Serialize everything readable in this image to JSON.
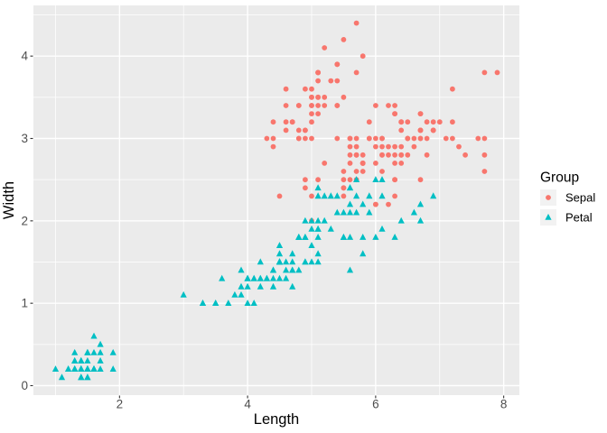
{
  "chart_data": {
    "type": "scatter",
    "title": "",
    "xlabel": "Length",
    "ylabel": "Width",
    "x_ticks": [
      2,
      4,
      6,
      8
    ],
    "y_ticks": [
      0,
      1,
      2,
      3,
      4
    ],
    "x_minor": [
      1,
      3,
      5,
      7
    ],
    "y_minor": [
      0.5,
      1.5,
      2.5,
      3.5,
      4.5
    ],
    "xlim": [
      0.655,
      8.245
    ],
    "ylim": [
      -0.115,
      4.615
    ],
    "grid": "on",
    "panel_bg": "#EBEBEB",
    "grid_color": "#FFFFFF",
    "tick_mark_color": "#333333",
    "axis_text_color": "#4D4D4D",
    "legend": {
      "title": "Group",
      "position": "right",
      "key_fill": "#F2F2F2",
      "entries": [
        {
          "label": "Sepal",
          "shape": "circle",
          "color": "#F8766D"
        },
        {
          "label": "Petal",
          "shape": "triangle",
          "color": "#00BFC4"
        }
      ]
    },
    "series": [
      {
        "name": "Sepal",
        "shape": "circle",
        "color": "#F8766D",
        "points": [
          [
            5.1,
            3.5
          ],
          [
            4.9,
            3.0
          ],
          [
            4.7,
            3.2
          ],
          [
            4.6,
            3.1
          ],
          [
            5.0,
            3.6
          ],
          [
            5.4,
            3.9
          ],
          [
            4.6,
            3.4
          ],
          [
            5.0,
            3.4
          ],
          [
            4.4,
            2.9
          ],
          [
            4.9,
            3.1
          ],
          [
            5.4,
            3.7
          ],
          [
            4.8,
            3.4
          ],
          [
            4.8,
            3.0
          ],
          [
            4.3,
            3.0
          ],
          [
            5.8,
            4.0
          ],
          [
            5.7,
            4.4
          ],
          [
            5.4,
            3.9
          ],
          [
            5.1,
            3.5
          ],
          [
            5.7,
            3.8
          ],
          [
            5.1,
            3.8
          ],
          [
            5.4,
            3.4
          ],
          [
            5.1,
            3.7
          ],
          [
            4.6,
            3.6
          ],
          [
            5.1,
            3.3
          ],
          [
            4.8,
            3.4
          ],
          [
            5.0,
            3.0
          ],
          [
            5.0,
            3.4
          ],
          [
            5.2,
            3.5
          ],
          [
            5.2,
            3.4
          ],
          [
            4.7,
            3.2
          ],
          [
            4.8,
            3.1
          ],
          [
            5.4,
            3.4
          ],
          [
            5.2,
            4.1
          ],
          [
            5.5,
            4.2
          ],
          [
            4.9,
            3.1
          ],
          [
            5.0,
            3.2
          ],
          [
            5.5,
            3.5
          ],
          [
            4.9,
            3.6
          ],
          [
            4.4,
            3.0
          ],
          [
            5.1,
            3.4
          ],
          [
            5.0,
            3.5
          ],
          [
            4.5,
            2.3
          ],
          [
            4.4,
            3.2
          ],
          [
            5.0,
            3.5
          ],
          [
            5.1,
            3.8
          ],
          [
            4.8,
            3.0
          ],
          [
            5.1,
            3.8
          ],
          [
            4.6,
            3.2
          ],
          [
            5.3,
            3.7
          ],
          [
            5.0,
            3.3
          ],
          [
            7.0,
            3.2
          ],
          [
            6.4,
            3.2
          ],
          [
            6.9,
            3.1
          ],
          [
            5.5,
            2.3
          ],
          [
            6.5,
            2.8
          ],
          [
            5.7,
            2.8
          ],
          [
            6.3,
            3.3
          ],
          [
            4.9,
            2.4
          ],
          [
            6.6,
            2.9
          ],
          [
            5.2,
            2.7
          ],
          [
            5.0,
            2.0
          ],
          [
            5.9,
            3.0
          ],
          [
            6.0,
            2.2
          ],
          [
            6.1,
            2.9
          ],
          [
            5.6,
            2.9
          ],
          [
            6.7,
            3.1
          ],
          [
            5.6,
            3.0
          ],
          [
            5.8,
            2.7
          ],
          [
            6.2,
            2.2
          ],
          [
            5.6,
            2.5
          ],
          [
            5.9,
            3.2
          ],
          [
            6.1,
            2.8
          ],
          [
            6.3,
            2.5
          ],
          [
            6.1,
            2.8
          ],
          [
            6.4,
            2.9
          ],
          [
            6.6,
            3.0
          ],
          [
            6.8,
            2.8
          ],
          [
            6.7,
            3.0
          ],
          [
            6.0,
            2.9
          ],
          [
            5.7,
            2.6
          ],
          [
            5.5,
            2.4
          ],
          [
            5.5,
            2.4
          ],
          [
            5.8,
            2.7
          ],
          [
            6.0,
            2.7
          ],
          [
            5.4,
            3.0
          ],
          [
            6.0,
            3.4
          ],
          [
            6.7,
            3.1
          ],
          [
            6.3,
            2.3
          ],
          [
            5.6,
            3.0
          ],
          [
            5.5,
            2.5
          ],
          [
            5.5,
            2.6
          ],
          [
            6.1,
            3.0
          ],
          [
            5.8,
            2.6
          ],
          [
            5.0,
            2.3
          ],
          [
            5.6,
            2.7
          ],
          [
            5.7,
            3.0
          ],
          [
            5.7,
            2.9
          ],
          [
            6.2,
            2.9
          ],
          [
            5.1,
            2.5
          ],
          [
            5.7,
            2.8
          ],
          [
            6.3,
            3.3
          ],
          [
            5.8,
            2.7
          ],
          [
            7.1,
            3.0
          ],
          [
            6.3,
            2.9
          ],
          [
            6.5,
            3.0
          ],
          [
            7.6,
            3.0
          ],
          [
            4.9,
            2.5
          ],
          [
            7.3,
            2.9
          ],
          [
            6.7,
            2.5
          ],
          [
            7.2,
            3.6
          ],
          [
            6.5,
            3.2
          ],
          [
            6.4,
            2.7
          ],
          [
            6.8,
            3.0
          ],
          [
            5.7,
            2.5
          ],
          [
            5.8,
            2.8
          ],
          [
            6.4,
            3.2
          ],
          [
            6.5,
            3.0
          ],
          [
            7.7,
            3.8
          ],
          [
            7.7,
            2.6
          ],
          [
            6.0,
            2.2
          ],
          [
            6.9,
            3.2
          ],
          [
            5.6,
            2.8
          ],
          [
            7.7,
            2.8
          ],
          [
            6.3,
            2.7
          ],
          [
            6.7,
            3.3
          ],
          [
            7.2,
            3.2
          ],
          [
            6.2,
            2.8
          ],
          [
            6.1,
            3.0
          ],
          [
            6.4,
            2.8
          ],
          [
            7.2,
            3.0
          ],
          [
            7.4,
            2.8
          ],
          [
            7.9,
            3.8
          ],
          [
            6.4,
            2.8
          ],
          [
            6.3,
            2.8
          ],
          [
            6.1,
            2.6
          ],
          [
            7.7,
            3.0
          ],
          [
            6.3,
            3.4
          ],
          [
            6.4,
            3.1
          ],
          [
            6.0,
            3.0
          ],
          [
            6.9,
            3.1
          ],
          [
            6.7,
            3.1
          ],
          [
            6.9,
            3.1
          ],
          [
            5.8,
            2.7
          ],
          [
            6.8,
            3.2
          ],
          [
            6.7,
            3.3
          ],
          [
            6.7,
            3.0
          ],
          [
            6.3,
            2.5
          ],
          [
            6.5,
            3.0
          ],
          [
            6.2,
            3.4
          ],
          [
            5.9,
            3.0
          ]
        ]
      },
      {
        "name": "Petal",
        "shape": "triangle",
        "color": "#00BFC4",
        "points": [
          [
            1.4,
            0.2
          ],
          [
            1.4,
            0.2
          ],
          [
            1.3,
            0.2
          ],
          [
            1.5,
            0.2
          ],
          [
            1.4,
            0.2
          ],
          [
            1.7,
            0.4
          ],
          [
            1.4,
            0.3
          ],
          [
            1.5,
            0.2
          ],
          [
            1.4,
            0.2
          ],
          [
            1.5,
            0.1
          ],
          [
            1.5,
            0.2
          ],
          [
            1.6,
            0.2
          ],
          [
            1.4,
            0.1
          ],
          [
            1.1,
            0.1
          ],
          [
            1.2,
            0.2
          ],
          [
            1.5,
            0.4
          ],
          [
            1.3,
            0.4
          ],
          [
            1.4,
            0.3
          ],
          [
            1.7,
            0.3
          ],
          [
            1.5,
            0.3
          ],
          [
            1.7,
            0.2
          ],
          [
            1.5,
            0.4
          ],
          [
            1.0,
            0.2
          ],
          [
            1.7,
            0.5
          ],
          [
            1.9,
            0.2
          ],
          [
            1.6,
            0.2
          ],
          [
            1.6,
            0.4
          ],
          [
            1.5,
            0.2
          ],
          [
            1.4,
            0.2
          ],
          [
            1.6,
            0.2
          ],
          [
            1.6,
            0.2
          ],
          [
            1.5,
            0.4
          ],
          [
            1.5,
            0.1
          ],
          [
            1.4,
            0.2
          ],
          [
            1.5,
            0.2
          ],
          [
            1.2,
            0.2
          ],
          [
            1.3,
            0.2
          ],
          [
            1.4,
            0.1
          ],
          [
            1.3,
            0.2
          ],
          [
            1.5,
            0.2
          ],
          [
            1.3,
            0.3
          ],
          [
            1.3,
            0.3
          ],
          [
            1.3,
            0.2
          ],
          [
            1.6,
            0.6
          ],
          [
            1.9,
            0.4
          ],
          [
            1.4,
            0.3
          ],
          [
            1.6,
            0.2
          ],
          [
            1.4,
            0.2
          ],
          [
            1.5,
            0.2
          ],
          [
            1.4,
            0.2
          ],
          [
            4.7,
            1.4
          ],
          [
            4.5,
            1.5
          ],
          [
            4.9,
            1.5
          ],
          [
            4.0,
            1.3
          ],
          [
            4.6,
            1.5
          ],
          [
            4.5,
            1.3
          ],
          [
            4.7,
            1.6
          ],
          [
            3.3,
            1.0
          ],
          [
            4.6,
            1.3
          ],
          [
            3.9,
            1.4
          ],
          [
            3.5,
            1.0
          ],
          [
            4.2,
            1.5
          ],
          [
            4.0,
            1.0
          ],
          [
            4.7,
            1.4
          ],
          [
            3.6,
            1.3
          ],
          [
            4.4,
            1.4
          ],
          [
            4.5,
            1.5
          ],
          [
            4.1,
            1.0
          ],
          [
            4.5,
            1.5
          ],
          [
            3.9,
            1.1
          ],
          [
            4.8,
            1.8
          ],
          [
            4.0,
            1.3
          ],
          [
            4.9,
            1.5
          ],
          [
            4.7,
            1.2
          ],
          [
            4.3,
            1.3
          ],
          [
            4.4,
            1.4
          ],
          [
            4.8,
            1.4
          ],
          [
            5.0,
            1.7
          ],
          [
            4.5,
            1.5
          ],
          [
            3.5,
            1.0
          ],
          [
            3.8,
            1.1
          ],
          [
            3.7,
            1.0
          ],
          [
            3.9,
            1.2
          ],
          [
            5.1,
            1.6
          ],
          [
            4.5,
            1.5
          ],
          [
            4.5,
            1.6
          ],
          [
            4.7,
            1.5
          ],
          [
            4.4,
            1.3
          ],
          [
            4.1,
            1.3
          ],
          [
            4.0,
            1.3
          ],
          [
            4.4,
            1.2
          ],
          [
            4.6,
            1.4
          ],
          [
            4.0,
            1.2
          ],
          [
            3.3,
            1.0
          ],
          [
            4.2,
            1.3
          ],
          [
            4.2,
            1.2
          ],
          [
            4.2,
            1.3
          ],
          [
            4.3,
            1.3
          ],
          [
            3.0,
            1.1
          ],
          [
            4.1,
            1.3
          ],
          [
            6.0,
            2.5
          ],
          [
            5.1,
            1.9
          ],
          [
            5.9,
            2.1
          ],
          [
            5.6,
            1.8
          ],
          [
            5.8,
            2.2
          ],
          [
            6.6,
            2.1
          ],
          [
            4.5,
            1.7
          ],
          [
            6.3,
            1.8
          ],
          [
            5.8,
            1.8
          ],
          [
            6.1,
            2.5
          ],
          [
            5.1,
            2.0
          ],
          [
            5.3,
            1.9
          ],
          [
            5.5,
            2.1
          ],
          [
            5.0,
            2.0
          ],
          [
            5.1,
            2.4
          ],
          [
            5.3,
            2.3
          ],
          [
            5.5,
            1.8
          ],
          [
            6.7,
            2.2
          ],
          [
            6.9,
            2.3
          ],
          [
            5.0,
            1.5
          ],
          [
            5.7,
            2.3
          ],
          [
            4.9,
            2.0
          ],
          [
            6.7,
            2.0
          ],
          [
            4.9,
            1.8
          ],
          [
            5.7,
            2.1
          ],
          [
            6.0,
            1.8
          ],
          [
            4.8,
            1.8
          ],
          [
            4.9,
            1.8
          ],
          [
            5.6,
            2.1
          ],
          [
            5.8,
            1.6
          ],
          [
            6.1,
            1.9
          ],
          [
            6.4,
            2.0
          ],
          [
            5.6,
            2.2
          ],
          [
            5.1,
            1.5
          ],
          [
            5.6,
            1.4
          ],
          [
            6.1,
            2.3
          ],
          [
            5.6,
            2.4
          ],
          [
            5.5,
            1.8
          ],
          [
            4.8,
            1.8
          ],
          [
            5.4,
            2.1
          ],
          [
            5.6,
            2.4
          ],
          [
            5.1,
            2.3
          ],
          [
            5.1,
            1.9
          ],
          [
            5.9,
            2.3
          ],
          [
            5.7,
            2.5
          ],
          [
            5.2,
            2.3
          ],
          [
            5.0,
            1.9
          ],
          [
            5.2,
            2.0
          ],
          [
            5.4,
            2.3
          ],
          [
            5.1,
            1.8
          ]
        ]
      }
    ]
  }
}
